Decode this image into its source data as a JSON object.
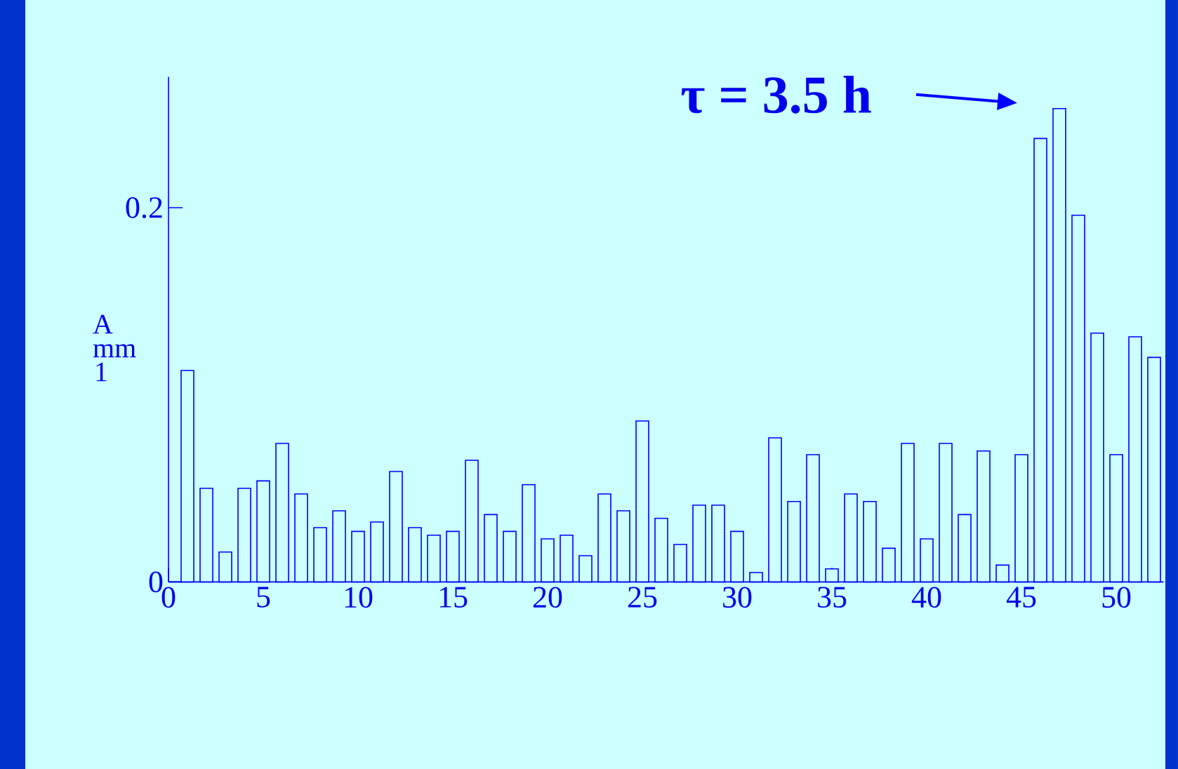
{
  "chart_data": {
    "type": "bar",
    "ylabel": "A mm 1",
    "x": [
      1,
      2,
      3,
      4,
      5,
      6,
      7,
      8,
      9,
      10,
      11,
      12,
      13,
      14,
      15,
      16,
      17,
      18,
      19,
      20,
      21,
      22,
      23,
      24,
      25,
      26,
      27,
      28,
      29,
      30,
      31,
      32,
      33,
      34,
      35,
      36,
      37,
      38,
      39,
      40,
      41,
      42,
      43,
      44,
      45,
      46,
      47,
      48,
      49,
      50,
      51,
      52
    ],
    "values": [
      0.113,
      0.05,
      0.016,
      0.05,
      0.054,
      0.074,
      0.047,
      0.029,
      0.038,
      0.027,
      0.032,
      0.059,
      0.029,
      0.025,
      0.027,
      0.065,
      0.036,
      0.027,
      0.052,
      0.023,
      0.025,
      0.014,
      0.047,
      0.038,
      0.086,
      0.034,
      0.02,
      0.041,
      0.041,
      0.027,
      0.005,
      0.077,
      0.043,
      0.068,
      0.007,
      0.047,
      0.043,
      0.018,
      0.074,
      0.023,
      0.074,
      0.036,
      0.07,
      0.009,
      0.068,
      0.237,
      0.253,
      0.196,
      0.133,
      0.068,
      0.131,
      0.12
    ],
    "color": "#0000ff",
    "xlim": [
      0,
      52.5
    ],
    "xticks": [
      0,
      5,
      10,
      15,
      20,
      25,
      30,
      35,
      40,
      45,
      50
    ],
    "ylim": [
      0,
      0.27
    ],
    "yticks": [
      0,
      0.2
    ],
    "annotations": [
      "τ = 3.5 h"
    ]
  }
}
